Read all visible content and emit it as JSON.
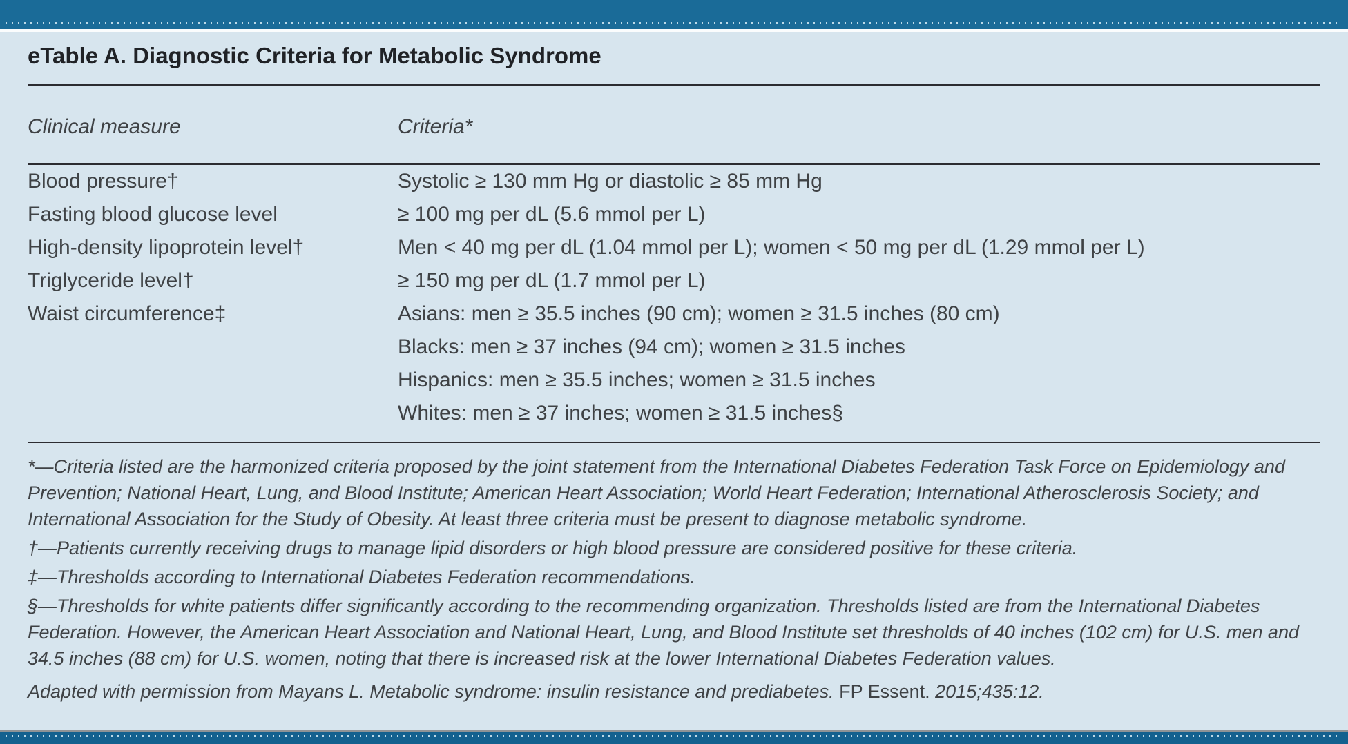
{
  "page": {
    "title": "eTable A. Diagnostic Criteria for Metabolic Syndrome"
  },
  "table": {
    "headers": {
      "measure": "Clinical measure",
      "criteria": "Criteria*"
    },
    "rows": [
      {
        "measure": "Blood pressure†",
        "criteria": [
          "Systolic ≥ 130 mm Hg or diastolic ≥ 85 mm Hg"
        ]
      },
      {
        "measure": "Fasting blood glucose level",
        "criteria": [
          "≥ 100 mg per dL (5.6 mmol per L)"
        ]
      },
      {
        "measure": "High-density lipoprotein level†",
        "criteria": [
          "Men < 40 mg per dL (1.04 mmol per L); women < 50 mg per dL (1.29 mmol per L)"
        ]
      },
      {
        "measure": "Triglyceride level†",
        "criteria": [
          "≥ 150 mg per dL (1.7 mmol per L)"
        ]
      },
      {
        "measure": "Waist circumference‡",
        "criteria": [
          "Asians: men ≥ 35.5 inches (90 cm); women ≥ 31.5 inches (80 cm)",
          "Blacks: men ≥ 37 inches (94 cm); women ≥ 31.5 inches",
          "Hispanics: men ≥ 35.5 inches; women ≥ 31.5 inches",
          "Whites: men ≥ 37 inches; women ≥ 31.5 inches§"
        ]
      }
    ]
  },
  "footnotes": [
    "*—Criteria listed are the harmonized criteria proposed by the joint statement from the International Diabetes Federation Task Force on Epidemiology and Prevention; National Heart, Lung, and Blood Institute; American Heart Association; World Heart Federation; International Atherosclerosis Society; and International Association for the Study of Obesity. At least three criteria must be present to diagnose metabolic syndrome.",
    "†—Patients currently receiving drugs to manage lipid disorders or high blood pressure are considered positive for these criteria.",
    "‡—Thresholds according to International Diabetes Federation recommendations.",
    "§—Thresholds for white patients differ significantly according to the recommending organization. Thresholds listed are from the International Diabetes Federation. However, the American Heart Association and National Heart, Lung, and Blood Institute set thresholds of 40 inches (102 cm) for U.S. men and 34.5 inches (88 cm) for U.S. women, noting that there is increased risk at the lower International Diabetes Federation values."
  ],
  "attribution": {
    "italic_lead": "Adapted with permission from Mayans L. Metabolic syndrome: insulin resistance and prediabetes. ",
    "journal": "FP Essent. ",
    "italic_tail": "2015;435:12."
  },
  "colors": {
    "header_bar": "#1a6b98",
    "footer_bar": "#14618f",
    "panel_background": "#d7e5ee",
    "title_text": "#202226",
    "body_text": "#3f4245",
    "rule": "#2c2c31"
  }
}
